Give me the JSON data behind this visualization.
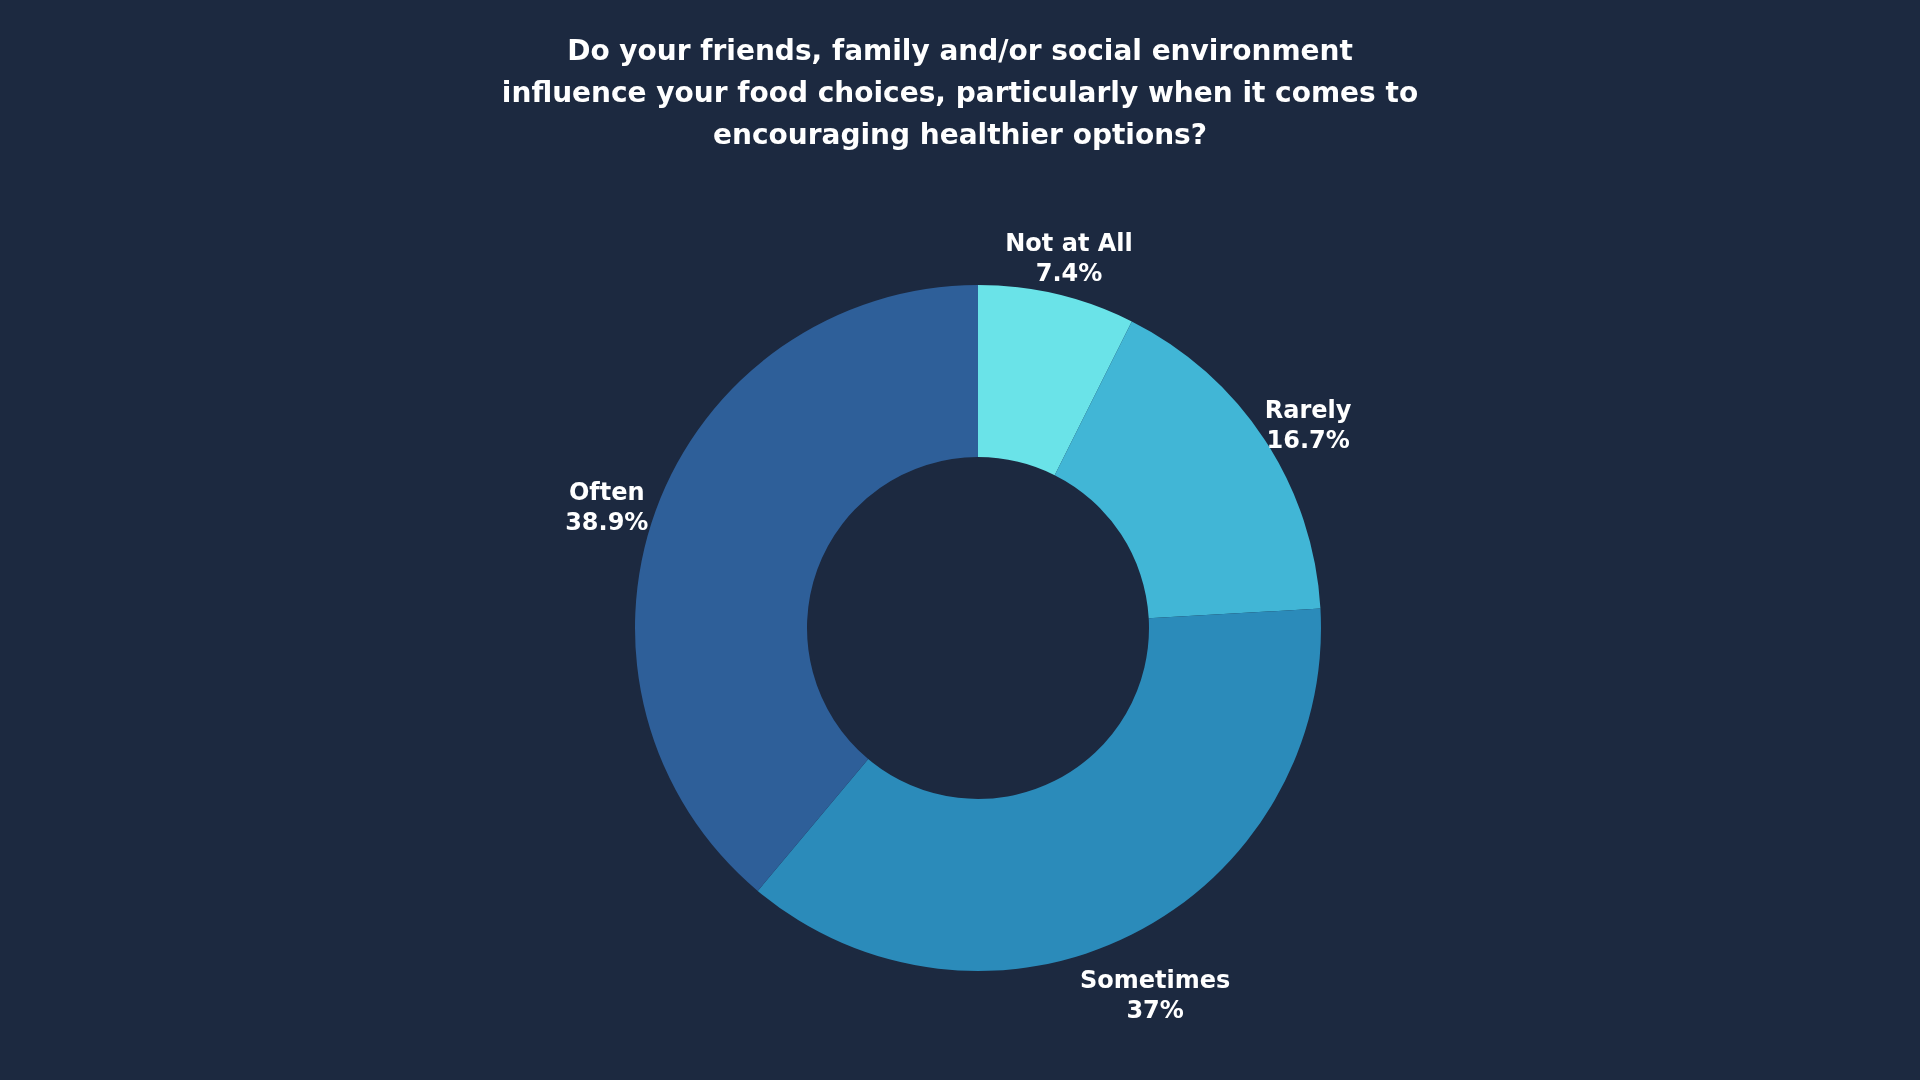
{
  "chart_data": {
    "type": "donut",
    "title": "Do your friends, family and/or social environment influence your food choices, particularly when it comes to encouraging healthier options?",
    "categories": [
      "Not at All",
      "Rarely",
      "Sometimes",
      "Often"
    ],
    "values": [
      7.4,
      16.7,
      37,
      38.9
    ],
    "value_labels": [
      "7.4%",
      "16.7%",
      "37%",
      "38.9%"
    ],
    "colors": [
      "#6ae3e8",
      "#41b6d6",
      "#2b8bba",
      "#2e5f99"
    ],
    "legend": false
  }
}
